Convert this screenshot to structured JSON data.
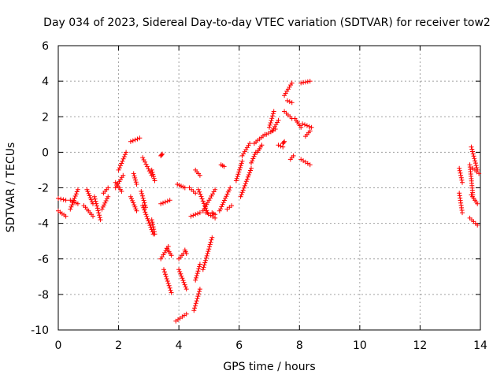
{
  "chart_data": {
    "type": "scatter",
    "title": "Day 034 of 2023, Sidereal Day-to-day VTEC variation (SDTVAR) for receiver tow2",
    "xlabel": "GPS time / hours",
    "ylabel": "SDTVAR / TECUs",
    "xlim": [
      0,
      14
    ],
    "ylim": [
      -10,
      6
    ],
    "xticks": [
      0,
      2,
      4,
      6,
      8,
      10,
      12,
      14
    ],
    "yticks": [
      -10,
      -8,
      -6,
      -4,
      -2,
      0,
      2,
      4,
      6
    ],
    "grid": true,
    "marker": "+",
    "color": "#ff0000",
    "segments": [
      {
        "x0": 0.0,
        "y0": -2.6,
        "x1": 0.25,
        "y1": -2.7
      },
      {
        "x0": 0.0,
        "y0": -3.3,
        "x1": 0.25,
        "y1": -3.6
      },
      {
        "x0": 0.4,
        "y0": -3.2,
        "x1": 0.65,
        "y1": -2.1
      },
      {
        "x0": 0.4,
        "y0": -2.7,
        "x1": 0.65,
        "y1": -2.9
      },
      {
        "x0": 0.85,
        "y0": -3.0,
        "x1": 1.15,
        "y1": -3.6
      },
      {
        "x0": 0.95,
        "y0": -2.1,
        "x1": 1.15,
        "y1": -2.9
      },
      {
        "x0": 1.2,
        "y0": -2.5,
        "x1": 1.4,
        "y1": -3.8
      },
      {
        "x0": 1.45,
        "y0": -3.2,
        "x1": 1.65,
        "y1": -2.5
      },
      {
        "x0": 1.5,
        "y0": -2.3,
        "x1": 1.65,
        "y1": -2.0
      },
      {
        "x0": 1.9,
        "y0": -1.7,
        "x1": 2.1,
        "y1": -2.2
      },
      {
        "x0": 1.9,
        "y0": -2.0,
        "x1": 2.15,
        "y1": -1.3
      },
      {
        "x0": 2.0,
        "y0": -1.0,
        "x1": 2.25,
        "y1": 0.0
      },
      {
        "x0": 2.4,
        "y0": 0.6,
        "x1": 2.7,
        "y1": 0.8
      },
      {
        "x0": 2.4,
        "y0": -2.5,
        "x1": 2.6,
        "y1": -3.3
      },
      {
        "x0": 2.5,
        "y0": -1.2,
        "x1": 2.6,
        "y1": -1.8
      },
      {
        "x0": 2.75,
        "y0": -2.2,
        "x1": 2.9,
        "y1": -3.1
      },
      {
        "x0": 2.8,
        "y0": -0.3,
        "x1": 3.1,
        "y1": -1.3
      },
      {
        "x0": 2.8,
        "y0": -3.0,
        "x1": 3.15,
        "y1": -4.6
      },
      {
        "x0": 3.1,
        "y0": -1.0,
        "x1": 3.2,
        "y1": -1.6
      },
      {
        "x0": 3.1,
        "y0": -3.8,
        "x1": 3.2,
        "y1": -4.6
      },
      {
        "x0": 3.4,
        "y0": -0.2,
        "x1": 3.45,
        "y1": -0.1
      },
      {
        "x0": 3.4,
        "y0": -2.9,
        "x1": 3.7,
        "y1": -2.7
      },
      {
        "x0": 3.4,
        "y0": -6.0,
        "x1": 3.65,
        "y1": -5.3
      },
      {
        "x0": 3.5,
        "y0": -6.6,
        "x1": 3.75,
        "y1": -7.9
      },
      {
        "x0": 3.6,
        "y0": -5.4,
        "x1": 3.75,
        "y1": -5.8
      },
      {
        "x0": 3.9,
        "y0": -9.5,
        "x1": 4.25,
        "y1": -9.1
      },
      {
        "x0": 3.95,
        "y0": -1.8,
        "x1": 4.2,
        "y1": -2.0
      },
      {
        "x0": 4.0,
        "y0": -6.0,
        "x1": 4.15,
        "y1": -5.7
      },
      {
        "x0": 4.0,
        "y0": -6.6,
        "x1": 4.25,
        "y1": -7.7
      },
      {
        "x0": 4.2,
        "y0": -5.5,
        "x1": 4.25,
        "y1": -5.7
      },
      {
        "x0": 4.35,
        "y0": -2.0,
        "x1": 4.55,
        "y1": -2.3
      },
      {
        "x0": 4.4,
        "y0": -3.6,
        "x1": 4.7,
        "y1": -3.4
      },
      {
        "x0": 4.5,
        "y0": -8.9,
        "x1": 4.7,
        "y1": -7.7
      },
      {
        "x0": 4.55,
        "y0": -7.2,
        "x1": 4.7,
        "y1": -6.3
      },
      {
        "x0": 4.55,
        "y0": -1.0,
        "x1": 4.7,
        "y1": -1.3
      },
      {
        "x0": 4.65,
        "y0": -2.1,
        "x1": 4.95,
        "y1": -3.4
      },
      {
        "x0": 4.8,
        "y0": -3.3,
        "x1": 5.2,
        "y1": -2.1
      },
      {
        "x0": 4.8,
        "y0": -6.6,
        "x1": 5.1,
        "y1": -4.8
      },
      {
        "x0": 4.9,
        "y0": -3.4,
        "x1": 5.2,
        "y1": -3.7
      },
      {
        "x0": 5.1,
        "y0": -3.4,
        "x1": 5.2,
        "y1": -3.5
      },
      {
        "x0": 5.35,
        "y0": -3.3,
        "x1": 5.7,
        "y1": -2.0
      },
      {
        "x0": 5.4,
        "y0": -0.7,
        "x1": 5.5,
        "y1": -0.8
      },
      {
        "x0": 5.6,
        "y0": -3.2,
        "x1": 5.75,
        "y1": -3.0
      },
      {
        "x0": 5.9,
        "y0": -1.6,
        "x1": 6.1,
        "y1": -0.5
      },
      {
        "x0": 6.05,
        "y0": -2.5,
        "x1": 6.4,
        "y1": -0.9
      },
      {
        "x0": 6.1,
        "y0": -0.2,
        "x1": 6.35,
        "y1": 0.5
      },
      {
        "x0": 6.4,
        "y0": -0.6,
        "x1": 6.55,
        "y1": 0.0
      },
      {
        "x0": 6.5,
        "y0": 0.5,
        "x1": 6.85,
        "y1": 1.0
      },
      {
        "x0": 6.6,
        "y0": 0.0,
        "x1": 6.75,
        "y1": 0.4
      },
      {
        "x0": 6.9,
        "y0": 1.0,
        "x1": 7.2,
        "y1": 1.3
      },
      {
        "x0": 7.0,
        "y0": 1.4,
        "x1": 7.15,
        "y1": 2.3
      },
      {
        "x0": 7.1,
        "y0": 1.2,
        "x1": 7.3,
        "y1": 1.8
      },
      {
        "x0": 7.3,
        "y0": 0.4,
        "x1": 7.45,
        "y1": 0.3
      },
      {
        "x0": 7.45,
        "y0": 0.5,
        "x1": 7.5,
        "y1": 0.6
      },
      {
        "x0": 7.5,
        "y0": 3.2,
        "x1": 7.75,
        "y1": 3.9
      },
      {
        "x0": 7.5,
        "y0": 2.3,
        "x1": 7.75,
        "y1": 1.9
      },
      {
        "x0": 7.6,
        "y0": 2.9,
        "x1": 7.75,
        "y1": 2.8
      },
      {
        "x0": 7.7,
        "y0": -0.4,
        "x1": 7.8,
        "y1": -0.2
      },
      {
        "x0": 7.85,
        "y0": 1.9,
        "x1": 8.05,
        "y1": 1.4
      },
      {
        "x0": 8.05,
        "y0": 3.9,
        "x1": 8.35,
        "y1": 4.0
      },
      {
        "x0": 8.05,
        "y0": -0.4,
        "x1": 8.35,
        "y1": -0.7
      },
      {
        "x0": 8.1,
        "y0": 1.6,
        "x1": 8.4,
        "y1": 1.4
      },
      {
        "x0": 8.2,
        "y0": 0.9,
        "x1": 8.35,
        "y1": 1.2
      },
      {
        "x0": 13.3,
        "y0": -0.9,
        "x1": 13.4,
        "y1": -1.7
      },
      {
        "x0": 13.3,
        "y0": -2.3,
        "x1": 13.4,
        "y1": -3.4
      },
      {
        "x0": 13.65,
        "y0": -0.7,
        "x1": 13.75,
        "y1": -2.4
      },
      {
        "x0": 13.7,
        "y0": 0.3,
        "x1": 13.9,
        "y1": -1.0
      },
      {
        "x0": 13.65,
        "y0": -3.7,
        "x1": 13.9,
        "y1": -4.1
      },
      {
        "x0": 13.7,
        "y0": -2.4,
        "x1": 13.9,
        "y1": -2.9
      },
      {
        "x0": 13.75,
        "y0": -0.9,
        "x1": 13.95,
        "y1": -1.2
      }
    ]
  }
}
